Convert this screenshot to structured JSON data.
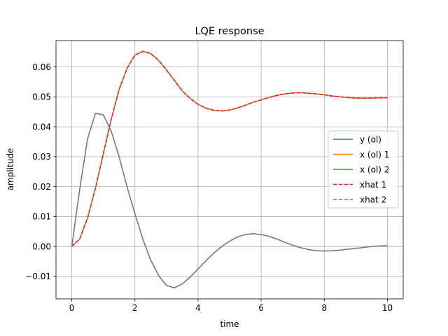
{
  "chart_data": {
    "type": "line",
    "title": "LQE response",
    "xlabel": "time",
    "ylabel": "amplitude",
    "xlim": [
      -0.5,
      10.5
    ],
    "ylim": [
      -0.0175,
      0.0688
    ],
    "grid": true,
    "legend_position": "right",
    "xticks": [
      0,
      2,
      4,
      6,
      8,
      10
    ],
    "xtick_labels": [
      "0",
      "2",
      "4",
      "6",
      "8",
      "10"
    ],
    "yticks": [
      -0.01,
      0.0,
      0.01,
      0.02,
      0.03,
      0.04,
      0.05,
      0.06
    ],
    "ytick_labels": [
      "−0.01",
      "0.00",
      "0.01",
      "0.02",
      "0.03",
      "0.04",
      "0.05",
      "0.06"
    ],
    "x": [
      0,
      0.25,
      0.5,
      0.75,
      1.0,
      1.25,
      1.5,
      1.75,
      2.0,
      2.25,
      2.5,
      2.75,
      3.0,
      3.25,
      3.5,
      3.75,
      4.0,
      4.25,
      4.5,
      4.75,
      5.0,
      5.25,
      5.5,
      5.75,
      6.0,
      6.25,
      6.5,
      6.75,
      7.0,
      7.25,
      7.5,
      7.75,
      8.0,
      8.25,
      8.5,
      8.75,
      9.0,
      9.25,
      9.5,
      9.75,
      10.0
    ],
    "series": [
      {
        "name": "y (ol)",
        "color": "#1f77b4",
        "style": "solid",
        "values": [
          0.0,
          0.0025,
          0.0095,
          0.0195,
          0.031,
          0.0425,
          0.0525,
          0.0595,
          0.064,
          0.0652,
          0.0645,
          0.0622,
          0.059,
          0.0555,
          0.052,
          0.0495,
          0.0475,
          0.0462,
          0.0455,
          0.0453,
          0.0456,
          0.0463,
          0.0472,
          0.0482,
          0.049,
          0.0498,
          0.0505,
          0.051,
          0.0513,
          0.0514,
          0.0512,
          0.051,
          0.0507,
          0.0503,
          0.05,
          0.0498,
          0.0496,
          0.0496,
          0.0496,
          0.0497,
          0.0497
        ]
      },
      {
        "name": "x (ol) 1",
        "color": "#ff7f0e",
        "style": "solid",
        "values": [
          0.0,
          0.0025,
          0.0095,
          0.0195,
          0.031,
          0.0425,
          0.0525,
          0.0595,
          0.064,
          0.0652,
          0.0645,
          0.0622,
          0.059,
          0.0555,
          0.052,
          0.0495,
          0.0475,
          0.0462,
          0.0455,
          0.0453,
          0.0456,
          0.0463,
          0.0472,
          0.0482,
          0.049,
          0.0498,
          0.0505,
          0.051,
          0.0513,
          0.0514,
          0.0512,
          0.051,
          0.0507,
          0.0503,
          0.05,
          0.0498,
          0.0496,
          0.0496,
          0.0496,
          0.0497,
          0.0497
        ]
      },
      {
        "name": "x (ol) 2",
        "color": "#2ca02c",
        "style": "solid",
        "values": [
          0.0,
          0.019,
          0.036,
          0.0445,
          0.044,
          0.0385,
          0.03,
          0.02,
          0.011,
          0.0025,
          -0.0045,
          -0.0097,
          -0.013,
          -0.0138,
          -0.0125,
          -0.0102,
          -0.0075,
          -0.0047,
          -0.0022,
          0.0,
          0.0018,
          0.0032,
          0.004,
          0.0043,
          0.004,
          0.0034,
          0.0025,
          0.0014,
          0.0004,
          -0.0004,
          -0.001,
          -0.0014,
          -0.0015,
          -0.0014,
          -0.0012,
          -0.0009,
          -0.0006,
          -0.0003,
          0.0,
          0.0002,
          0.0003
        ]
      },
      {
        "name": "xhat 1",
        "color": "#d62728",
        "style": "dashed",
        "values": [
          0.0,
          0.0025,
          0.0095,
          0.0195,
          0.031,
          0.0425,
          0.0525,
          0.0595,
          0.064,
          0.0652,
          0.0645,
          0.0622,
          0.059,
          0.0555,
          0.052,
          0.0495,
          0.0475,
          0.0462,
          0.0455,
          0.0453,
          0.0456,
          0.0463,
          0.0472,
          0.0482,
          0.049,
          0.0498,
          0.0505,
          0.051,
          0.0513,
          0.0514,
          0.0512,
          0.051,
          0.0507,
          0.0503,
          0.05,
          0.0498,
          0.0496,
          0.0496,
          0.0496,
          0.0497,
          0.0497
        ]
      },
      {
        "name": "xhat 2",
        "color": "#9467bd",
        "style": "dashed",
        "values": [
          0.0,
          0.019,
          0.036,
          0.0445,
          0.044,
          0.0385,
          0.03,
          0.02,
          0.011,
          0.0025,
          -0.0045,
          -0.0097,
          -0.013,
          -0.0138,
          -0.0125,
          -0.0102,
          -0.0075,
          -0.0047,
          -0.0022,
          0.0,
          0.0018,
          0.0032,
          0.004,
          0.0043,
          0.004,
          0.0034,
          0.0025,
          0.0014,
          0.0004,
          -0.0004,
          -0.001,
          -0.0014,
          -0.0015,
          -0.0014,
          -0.0012,
          -0.0009,
          -0.0006,
          -0.0003,
          0.0,
          0.0002,
          0.0003
        ]
      }
    ]
  }
}
